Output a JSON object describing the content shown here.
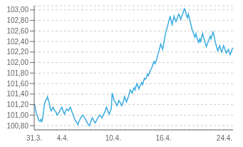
{
  "chart_data": {
    "type": "line",
    "categories": [
      "31.3.",
      null,
      null,
      null,
      null,
      null,
      null,
      null,
      null,
      null,
      null,
      null,
      null,
      null,
      null,
      null,
      null,
      null,
      null,
      null,
      null,
      null,
      null,
      null,
      null,
      null,
      null,
      null,
      null,
      null,
      "4.4.",
      null,
      null,
      null,
      null,
      null,
      null,
      null,
      null,
      null,
      null,
      null,
      null,
      null,
      null,
      null,
      null,
      null,
      null,
      null,
      null,
      null,
      null,
      null,
      null,
      null,
      null,
      null,
      null,
      null,
      null,
      null,
      null,
      null,
      null,
      null,
      null,
      null,
      null,
      null,
      null,
      null,
      null,
      null,
      null,
      null,
      null,
      null,
      null,
      null,
      null,
      null,
      null,
      "10.4.",
      null,
      null,
      null,
      null,
      null,
      null,
      null,
      null,
      null,
      null,
      null,
      null,
      null,
      null,
      null,
      null,
      null,
      null,
      null,
      null,
      null,
      null,
      null,
      null,
      null,
      null,
      null,
      null,
      null,
      null,
      null,
      null,
      null,
      null,
      null,
      null,
      null,
      null,
      null,
      null,
      null,
      null,
      null,
      null,
      null,
      null,
      null,
      null,
      null,
      null,
      null,
      null,
      "16.4.",
      null,
      null,
      null,
      null,
      null,
      null,
      null,
      null,
      null,
      null,
      null,
      null,
      null,
      null,
      null,
      null,
      null,
      null,
      null,
      null,
      null,
      null,
      null,
      null,
      null,
      null,
      null,
      null,
      null,
      null,
      null,
      null,
      null,
      null,
      null,
      null,
      null,
      null,
      null,
      null,
      null,
      null,
      null,
      null,
      null,
      null,
      null,
      null,
      null,
      null,
      null,
      null,
      null,
      null,
      null,
      null,
      null,
      null,
      null,
      null,
      null,
      null,
      null,
      "24.4.",
      null,
      null,
      null,
      null,
      null,
      null,
      null,
      null,
      null
    ],
    "values": [
      101.22,
      101.15,
      101.05,
      101.0,
      100.95,
      100.9,
      100.88,
      100.92,
      100.88,
      100.95,
      101.1,
      101.22,
      101.28,
      101.3,
      101.35,
      101.28,
      101.22,
      101.12,
      101.08,
      101.12,
      101.15,
      101.1,
      101.08,
      101.05,
      101.0,
      101.02,
      101.05,
      101.08,
      101.12,
      101.15,
      101.1,
      101.05,
      101.02,
      101.08,
      101.12,
      101.1,
      101.08,
      101.12,
      101.15,
      101.1,
      101.05,
      101.0,
      100.95,
      100.9,
      100.88,
      100.85,
      100.82,
      100.88,
      100.92,
      100.95,
      100.98,
      101.0,
      100.98,
      100.95,
      100.92,
      100.88,
      100.85,
      100.82,
      100.8,
      100.85,
      100.9,
      100.95,
      100.92,
      100.88,
      100.85,
      100.88,
      100.92,
      100.95,
      100.98,
      101.0,
      100.98,
      100.95,
      100.98,
      101.02,
      101.05,
      101.1,
      101.15,
      101.1,
      101.05,
      101.02,
      101.08,
      101.12,
      101.42,
      101.35,
      101.28,
      101.25,
      101.22,
      101.18,
      101.22,
      101.28,
      101.25,
      101.22,
      101.18,
      101.22,
      101.28,
      101.35,
      101.3,
      101.25,
      101.3,
      101.35,
      101.42,
      101.48,
      101.45,
      101.42,
      101.48,
      101.52,
      101.48,
      101.55,
      101.6,
      101.55,
      101.5,
      101.55,
      101.58,
      101.62,
      101.58,
      101.65,
      101.7,
      101.68,
      101.72,
      101.78,
      101.75,
      101.8,
      101.85,
      101.88,
      101.92,
      101.98,
      102.02,
      101.98,
      102.02,
      102.08,
      102.15,
      102.22,
      102.28,
      102.35,
      102.3,
      102.25,
      102.35,
      102.45,
      102.55,
      102.62,
      102.68,
      102.75,
      102.82,
      102.88,
      102.78,
      102.72,
      102.8,
      102.88,
      102.82,
      102.78,
      102.82,
      102.88,
      102.92,
      102.88,
      102.82,
      102.88,
      102.92,
      102.98,
      103.02,
      102.98,
      102.9,
      102.85,
      102.92,
      102.85,
      102.78,
      102.7,
      102.62,
      102.58,
      102.52,
      102.48,
      102.55,
      102.48,
      102.42,
      102.38,
      102.45,
      102.4,
      102.48,
      102.55,
      102.48,
      102.42,
      102.35,
      102.3,
      102.35,
      102.4,
      102.45,
      102.5,
      102.45,
      102.52,
      102.58,
      102.52,
      102.42,
      102.35,
      102.28,
      102.22,
      102.28,
      102.32,
      102.25,
      102.2,
      102.25,
      102.32,
      102.28,
      102.22,
      102.18,
      102.22,
      102.25,
      102.2,
      102.15,
      102.2,
      102.25,
      102.28
    ],
    "color": "#3aace0",
    "ylim": [
      100.72,
      103.08
    ],
    "yticks": [
      {
        "value": 100.8,
        "label": "100,80"
      },
      {
        "value": 101.0,
        "label": "101,00"
      },
      {
        "value": 101.2,
        "label": "101,20"
      },
      {
        "value": 101.4,
        "label": "101,40"
      },
      {
        "value": 101.6,
        "label": "101,60"
      },
      {
        "value": 101.8,
        "label": "101,80"
      },
      {
        "value": 102.0,
        "label": "102,00"
      },
      {
        "value": 102.2,
        "label": "102,20"
      },
      {
        "value": 102.4,
        "label": "102,40"
      },
      {
        "value": 102.6,
        "label": "102,60"
      },
      {
        "value": 102.8,
        "label": "102,80"
      },
      {
        "value": 103.0,
        "label": "103,00"
      }
    ],
    "grid": true
  }
}
